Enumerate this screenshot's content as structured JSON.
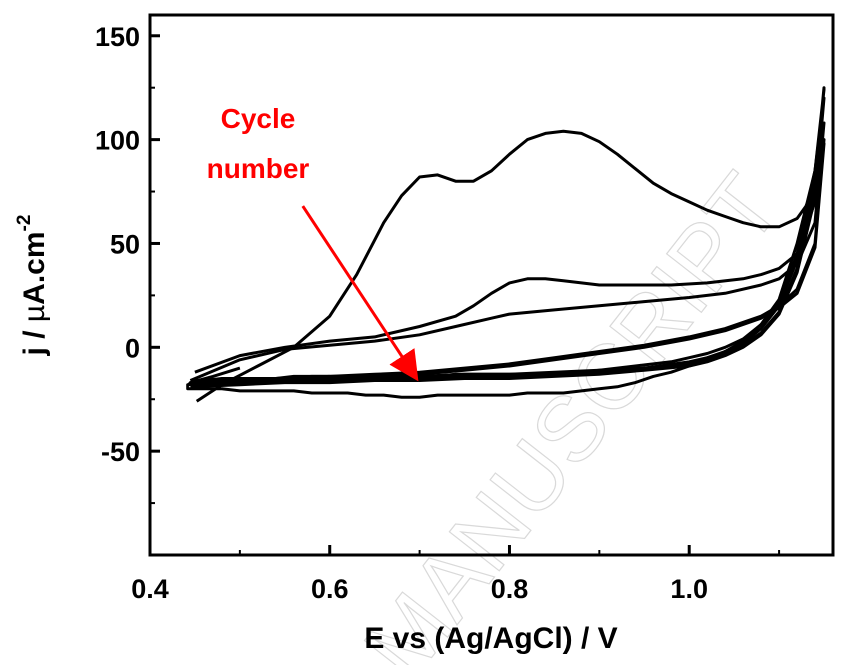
{
  "chart_data": {
    "type": "line",
    "title": "",
    "xlabel": "E vs (Ag/AgCl) / V",
    "ylabel_main": "j / ",
    "ylabel_mu": "µ",
    "ylabel_rest": "A.cm",
    "ylabel_sup": "-2",
    "xlim": [
      0.4,
      1.16
    ],
    "ylim": [
      -100,
      160
    ],
    "x_ticks": [
      "0.4",
      "0.6",
      "0.8",
      "1.0"
    ],
    "x_tick_values": [
      0.4,
      0.6,
      0.8,
      1.0
    ],
    "y_ticks": [
      "150",
      "100",
      "50",
      "0",
      "-50"
    ],
    "y_tick_values": [
      150,
      100,
      50,
      0,
      -50
    ],
    "grid": false,
    "line_color": "#000000",
    "annotation": {
      "lines": [
        "Cycle",
        "number"
      ],
      "color": "#ff0000",
      "arrow_from": [
        0.57,
        68
      ],
      "arrow_to": [
        0.695,
        -14
      ]
    },
    "series": [
      {
        "x": [
          0.452,
          0.48,
          0.52,
          0.56,
          0.6,
          0.63,
          0.66,
          0.68,
          0.7,
          0.72,
          0.74,
          0.76,
          0.78,
          0.8,
          0.82,
          0.84,
          0.86,
          0.88,
          0.9,
          0.92,
          0.94,
          0.96,
          0.98,
          1.0,
          1.02,
          1.04,
          1.06,
          1.08,
          1.1,
          1.12,
          1.13,
          1.14,
          1.15,
          1.15,
          1.14,
          1.12,
          1.1,
          1.08,
          1.06,
          1.04,
          1.02,
          1.0,
          0.98,
          0.96,
          0.94,
          0.92,
          0.9,
          0.88,
          0.86,
          0.84,
          0.82,
          0.8,
          0.78,
          0.76,
          0.74,
          0.72,
          0.7,
          0.68,
          0.66,
          0.64,
          0.62,
          0.6,
          0.58,
          0.56,
          0.54,
          0.52,
          0.5,
          0.48,
          0.46,
          0.442,
          0.442,
          0.46,
          0.5,
          0.54,
          0.58,
          0.6
        ],
        "y": [
          -26,
          -18,
          -9,
          0,
          15,
          35,
          60,
          73,
          82,
          83,
          80,
          80,
          85,
          93,
          100,
          103,
          104,
          103,
          99,
          93,
          86,
          79,
          74,
          70,
          66,
          63,
          60,
          58,
          58,
          62,
          68,
          80,
          125,
          124,
          85,
          50,
          23,
          11,
          3,
          -2,
          -6,
          -9,
          -12,
          -14,
          -17,
          -19,
          -20,
          -21,
          -22,
          -22,
          -22,
          -23,
          -23,
          -23,
          -23,
          -23,
          -24,
          -24,
          -23,
          -23,
          -22,
          -22,
          -22,
          -21,
          -21,
          -21,
          -21,
          -20,
          -20,
          -20,
          -18,
          -17,
          -16,
          -15,
          -14,
          -14
        ]
      },
      {
        "x": [
          0.45,
          0.5,
          0.55,
          0.6,
          0.65,
          0.7,
          0.74,
          0.76,
          0.78,
          0.8,
          0.82,
          0.84,
          0.86,
          0.88,
          0.9,
          0.94,
          0.98,
          1.02,
          1.06,
          1.08,
          1.1,
          1.12,
          1.14,
          1.15,
          1.14,
          1.12,
          1.1,
          1.08,
          1.06,
          1.04,
          1.02,
          1.0,
          0.98,
          0.96,
          0.94,
          0.92,
          0.9,
          0.88,
          0.86,
          0.84,
          0.82,
          0.8,
          0.78,
          0.76,
          0.74,
          0.72,
          0.7,
          0.68,
          0.66,
          0.64,
          0.62,
          0.6,
          0.58,
          0.56,
          0.54,
          0.52,
          0.5,
          0.48,
          0.46,
          0.443,
          0.445,
          0.47,
          0.5
        ],
        "y": [
          -12,
          -4,
          0,
          3,
          5,
          10,
          15,
          20,
          26,
          31,
          33,
          33,
          32,
          31,
          30,
          30,
          30,
          31,
          33,
          35,
          38,
          45,
          70,
          120,
          85,
          45,
          22,
          11,
          4,
          0,
          -3,
          -5,
          -7,
          -8,
          -9,
          -10,
          -11,
          -12,
          -12,
          -13,
          -13,
          -13,
          -13,
          -13,
          -13,
          -14,
          -14,
          -14,
          -14,
          -14,
          -14,
          -14,
          -14,
          -14,
          -15,
          -15,
          -15,
          -15,
          -16,
          -18,
          -17,
          -14,
          -10
        ]
      },
      {
        "x": [
          0.445,
          0.5,
          0.55,
          0.6,
          0.65,
          0.7,
          0.74,
          0.78,
          0.8,
          0.85,
          0.9,
          0.95,
          1.0,
          1.04,
          1.08,
          1.1,
          1.12,
          1.14,
          1.15,
          1.14,
          1.12,
          1.1,
          1.08,
          1.06,
          1.04,
          1.02,
          1.0,
          0.95,
          0.9,
          0.85,
          0.8,
          0.75,
          0.7,
          0.65,
          0.6,
          0.55,
          0.5,
          0.46,
          0.445
        ],
        "y": [
          -16,
          -6,
          -1,
          1,
          3,
          6,
          10,
          14,
          16,
          18,
          20,
          22,
          24,
          26,
          30,
          33,
          40,
          60,
          108,
          80,
          42,
          20,
          9,
          2,
          -2,
          -5,
          -7,
          -10,
          -11,
          -12,
          -13,
          -13,
          -14,
          -14,
          -15,
          -15,
          -16,
          -16,
          -16
        ]
      },
      {
        "x": [
          0.445,
          0.5,
          0.55,
          0.6,
          0.65,
          0.7,
          0.75,
          0.8,
          0.85,
          0.9,
          0.95,
          1.0,
          1.04,
          1.08,
          1.1,
          1.12,
          1.14,
          1.15,
          1.14,
          1.12,
          1.1,
          1.08,
          1.06,
          1.04,
          1.02,
          1.0,
          0.95,
          0.9,
          0.85,
          0.8,
          0.75,
          0.7,
          0.65,
          0.6,
          0.55,
          0.5,
          0.445
        ],
        "y": [
          -18,
          -16,
          -15,
          -14,
          -13,
          -12,
          -10,
          -8,
          -5,
          -2,
          1,
          5,
          9,
          15,
          20,
          28,
          50,
          100,
          75,
          38,
          17,
          7,
          1,
          -3,
          -6,
          -8,
          -10,
          -12,
          -13,
          -14,
          -14,
          -15,
          -15,
          -16,
          -16,
          -17,
          -18
        ]
      },
      {
        "x": [
          0.445,
          0.5,
          0.55,
          0.6,
          0.65,
          0.7,
          0.75,
          0.8,
          0.85,
          0.9,
          0.95,
          1.0,
          1.04,
          1.08,
          1.1,
          1.12,
          1.14,
          1.15,
          1.14,
          1.12,
          1.1,
          1.08,
          1.06,
          1.04,
          1.02,
          1.0,
          0.95,
          0.9,
          0.85,
          0.8,
          0.75,
          0.7,
          0.65,
          0.6,
          0.55,
          0.5,
          0.445
        ],
        "y": [
          -19,
          -17,
          -16,
          -15,
          -14,
          -13,
          -11,
          -9,
          -6,
          -3,
          0,
          4,
          8,
          14,
          19,
          26,
          48,
          98,
          72,
          36,
          16,
          6,
          0,
          -4,
          -7,
          -9,
          -11,
          -13,
          -14,
          -15,
          -15,
          -16,
          -16,
          -17,
          -17,
          -18,
          -19
        ]
      }
    ]
  }
}
